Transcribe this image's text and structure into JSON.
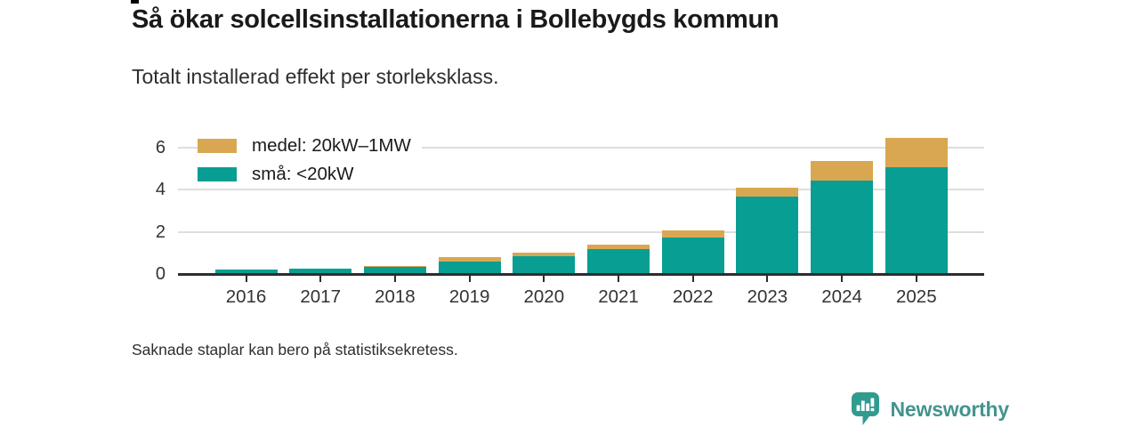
{
  "chart_data": {
    "type": "bar",
    "stacked": true,
    "title": "Så ökar solcellsinstallationerna i Bollebygds kommun",
    "subtitle": "Totalt installerad effekt per storleksklass.",
    "note": "Saknade staplar kan bero på statistiksekretess.",
    "categories": [
      "2016",
      "2017",
      "2018",
      "2019",
      "2020",
      "2021",
      "2022",
      "2023",
      "2024",
      "2025"
    ],
    "series": [
      {
        "key": "medel",
        "name": "medel: 20kW–1MW",
        "color": "#D9A751",
        "values": [
          0,
          0,
          0.05,
          0.2,
          0.15,
          0.2,
          0.3,
          0.45,
          0.9,
          1.4
        ]
      },
      {
        "key": "sma",
        "name": "små: <20kW",
        "color": "#089E93",
        "values": [
          0.2,
          0.25,
          0.35,
          0.6,
          0.85,
          1.2,
          1.75,
          3.65,
          4.45,
          5.05
        ]
      }
    ],
    "totals": [
      0.2,
      0.25,
      0.4,
      0.8,
      1.0,
      1.4,
      2.05,
      4.1,
      5.35,
      6.45
    ],
    "xlabel": "",
    "ylabel": "",
    "yticks": [
      0,
      2,
      4,
      6
    ],
    "ylim": [
      0,
      6.6
    ],
    "grid": "horizontal",
    "legend_position": "top-left"
  },
  "footer": {
    "brand": "Newsworthy"
  },
  "colors": {
    "bar_small": "#089E93",
    "bar_medium": "#D9A751",
    "axis": "#2D2D2D",
    "gridline": "#DEDEDE",
    "brand_teal": "#43948E",
    "brand_icon": "#319B90",
    "title_text": "#1A1A1A"
  }
}
